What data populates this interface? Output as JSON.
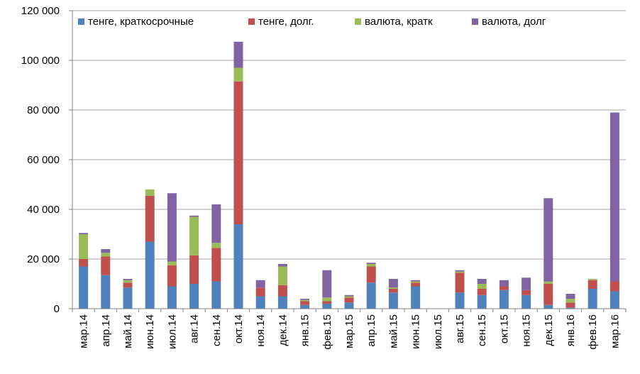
{
  "chart_data": {
    "type": "bar",
    "stacked": true,
    "title": "",
    "xlabel": "",
    "ylabel": "",
    "ylim": [
      0,
      120000
    ],
    "yticks": [
      0,
      20000,
      40000,
      60000,
      80000,
      100000,
      120000
    ],
    "ytick_labels": [
      "0",
      "20 000",
      "40 000",
      "60 000",
      "80 000",
      "100 000",
      "120 000"
    ],
    "grid": true,
    "legend_position": "top",
    "categories": [
      "мар.14",
      "апр.14",
      "май.14",
      "июн.14",
      "июл.14",
      "авг.14",
      "сен.14",
      "окт.14",
      "ноя.14",
      "дек.14",
      "янв.15",
      "фев.15",
      "мар.15",
      "апр.15",
      "май.15",
      "июн.15",
      "июл.15",
      "авг.15",
      "сен.15",
      "окт.15",
      "ноя.15",
      "дек.15",
      "янв.16",
      "фев.16",
      "мар.16"
    ],
    "series": [
      {
        "name": "тенге, краткосрочные",
        "color": "#4F81BD",
        "values": [
          17000,
          13500,
          8500,
          27000,
          9000,
          10000,
          11000,
          34000,
          5000,
          5000,
          1500,
          2000,
          2500,
          10500,
          6500,
          9000,
          0,
          6500,
          5500,
          7500,
          5500,
          1500,
          500,
          8000,
          7000
        ]
      },
      {
        "name": "тенге, долг.",
        "color": "#C0504D",
        "values": [
          3000,
          7500,
          2000,
          18500,
          8500,
          11500,
          13500,
          57500,
          3500,
          4500,
          1500,
          1000,
          2000,
          6500,
          1500,
          1500,
          0,
          8000,
          2500,
          1500,
          2000,
          8500,
          2000,
          3500,
          4000
        ]
      },
      {
        "name": "валюта, кратк",
        "color": "#9BBB59",
        "values": [
          10000,
          1500,
          1000,
          2500,
          1500,
          15500,
          2000,
          5500,
          0,
          7500,
          500,
          1500,
          500,
          1000,
          500,
          500,
          0,
          500,
          2000,
          0,
          0,
          1000,
          1500,
          500,
          0
        ]
      },
      {
        "name": "валюта, долг",
        "color": "#8064A2",
        "values": [
          500,
          1500,
          500,
          0,
          27500,
          500,
          15500,
          10500,
          3000,
          1000,
          500,
          11000,
          500,
          500,
          3500,
          500,
          0,
          500,
          2000,
          2500,
          5000,
          33500,
          2000,
          0,
          68000
        ]
      }
    ]
  }
}
